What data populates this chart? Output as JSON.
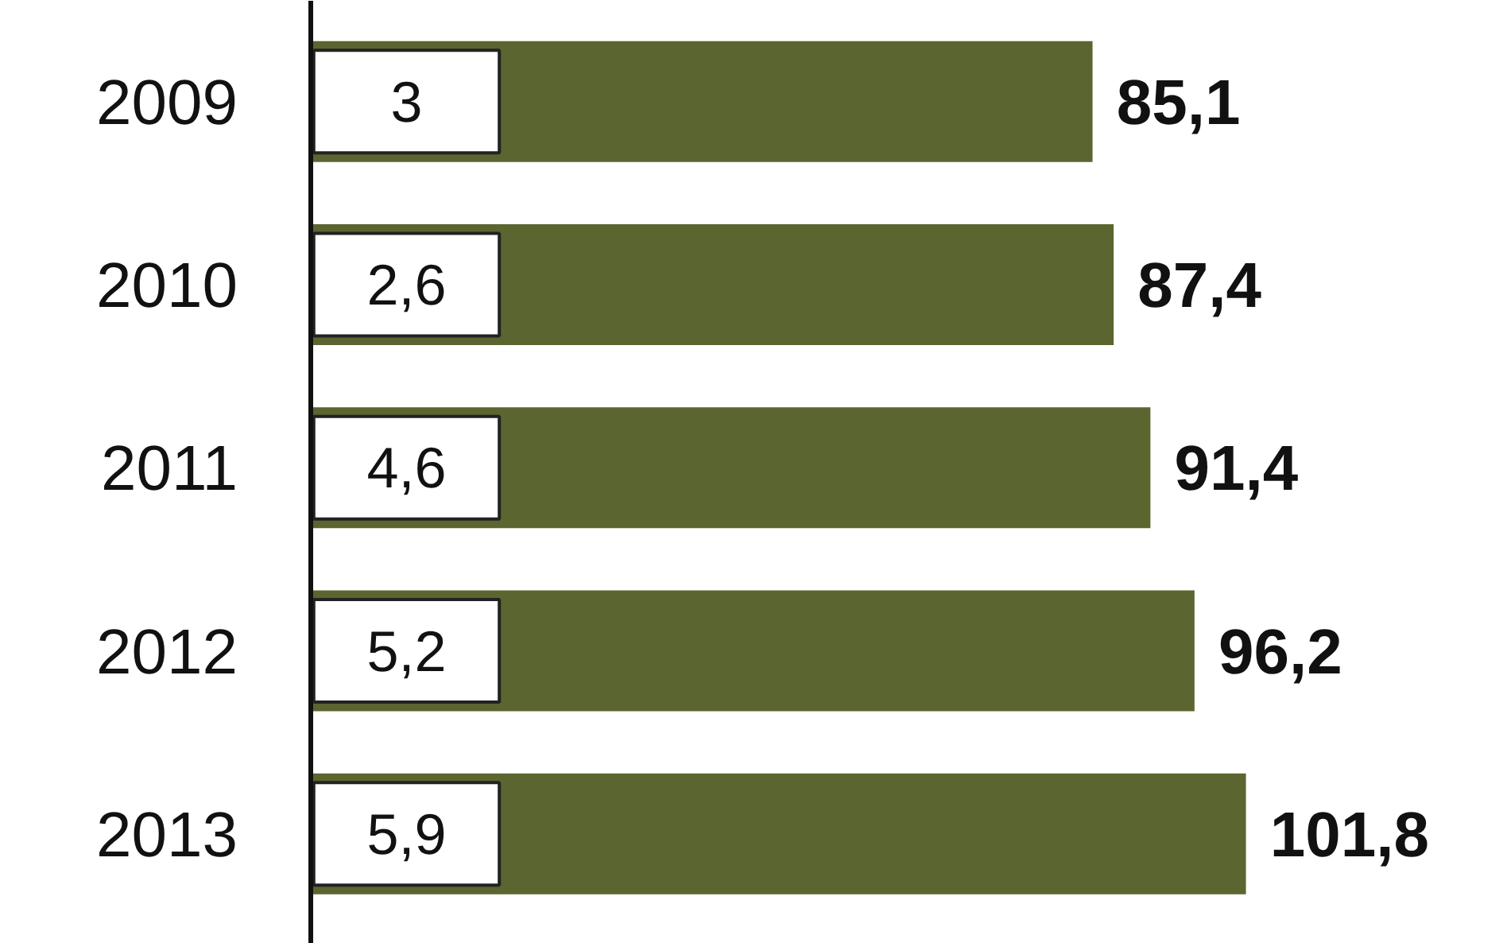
{
  "chart_data": {
    "type": "bar",
    "orientation": "horizontal",
    "categories": [
      "2009",
      "2010",
      "2011",
      "2012",
      "2013"
    ],
    "values": [
      85.1,
      87.4,
      91.4,
      96.2,
      101.8
    ],
    "value_labels": [
      "85,1",
      "87,4",
      "91,4",
      "96,2",
      "101,8"
    ],
    "color": "#5b6530",
    "tick_labels": "y",
    "annotations": [
      "3",
      "2,6",
      "4,6",
      "5,2",
      "5,9"
    ]
  }
}
